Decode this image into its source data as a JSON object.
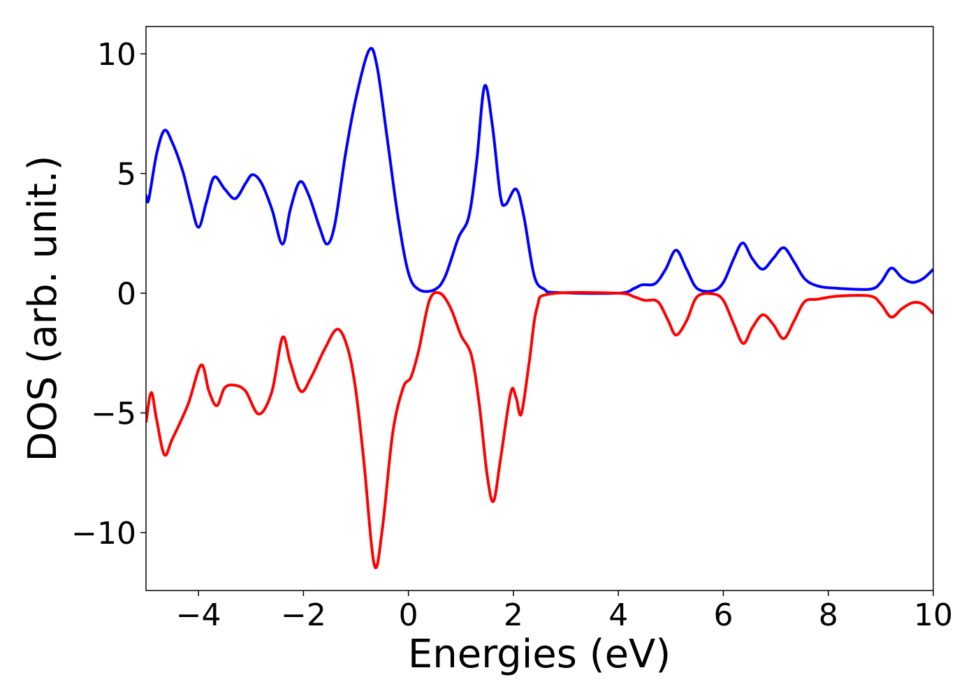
{
  "chart_data": {
    "type": "line",
    "xlabel": "Energies (eV)",
    "ylabel": "DOS (arb. unit.)",
    "xlim": [
      -5,
      10
    ],
    "ylim": [
      -12.42,
      11.14
    ],
    "xticks": [
      {
        "value": -4,
        "label": "−4"
      },
      {
        "value": -2,
        "label": "−2"
      },
      0,
      2,
      4,
      6,
      8,
      10
    ],
    "yticks": [
      {
        "value": -10,
        "label": "−10"
      },
      {
        "value": -5,
        "label": "−5"
      },
      0,
      5,
      10
    ],
    "series": [
      {
        "color": "#0000ff",
        "x": [
          -5,
          -4.95,
          -4.8,
          -4.65,
          -4.5,
          -4.3,
          -4.15,
          -4.0,
          -3.85,
          -3.7,
          -3.5,
          -3.3,
          -3.1,
          -2.97,
          -2.8,
          -2.6,
          -2.4,
          -2.25,
          -2.07,
          -1.9,
          -1.7,
          -1.55,
          -1.4,
          -1.2,
          -1.0,
          -0.75,
          -0.6,
          -0.4,
          -0.2,
          0,
          0.2,
          0.5,
          0.7,
          0.95,
          1.15,
          1.3,
          1.45,
          1.6,
          1.75,
          1.85,
          2.05,
          2.2,
          2.4,
          2.6,
          2.8,
          4.0,
          4.3,
          4.45,
          4.7,
          4.9,
          5.1,
          5.3,
          5.5,
          5.8,
          6.0,
          6.2,
          6.37,
          6.55,
          6.75,
          6.95,
          7.15,
          7.35,
          7.55,
          7.8,
          8.2,
          8.8,
          9.0,
          9.2,
          9.4,
          9.6,
          9.8,
          10
        ],
        "values": [
          4.1,
          3.9,
          5.8,
          6.8,
          6.3,
          5.1,
          3.8,
          2.75,
          3.8,
          4.85,
          4.35,
          3.95,
          4.6,
          4.95,
          4.6,
          3.5,
          2.05,
          3.5,
          4.65,
          4.1,
          2.8,
          2.05,
          2.9,
          5.8,
          8.15,
          10.15,
          9.5,
          6.4,
          3.2,
          0.85,
          0.15,
          0.15,
          0.7,
          2.3,
          3.2,
          5.5,
          8.65,
          7.0,
          4.1,
          3.7,
          4.35,
          3.2,
          0.7,
          0.15,
          0.03,
          0,
          0.2,
          0.35,
          0.4,
          1.0,
          1.8,
          1.0,
          0.2,
          0.1,
          0.45,
          1.45,
          2.1,
          1.45,
          1.0,
          1.45,
          1.9,
          1.3,
          0.6,
          0.3,
          0.2,
          0.17,
          0.45,
          1.05,
          0.65,
          0.45,
          0.6,
          1.0
        ]
      },
      {
        "color": "#ff0000",
        "x": [
          -5,
          -4.9,
          -4.8,
          -4.65,
          -4.5,
          -4.2,
          -3.95,
          -3.8,
          -3.65,
          -3.5,
          -3.3,
          -3.1,
          -2.85,
          -2.6,
          -2.4,
          -2.25,
          -2.05,
          -1.85,
          -1.6,
          -1.35,
          -1.15,
          -1.0,
          -0.85,
          -0.65,
          -0.5,
          -0.3,
          -0.1,
          0.05,
          0.2,
          0.4,
          0.6,
          0.8,
          1.0,
          1.2,
          1.35,
          1.5,
          1.62,
          1.75,
          1.95,
          2.05,
          2.15,
          2.3,
          2.45,
          2.7,
          4.0,
          4.3,
          4.5,
          4.75,
          4.95,
          5.1,
          5.3,
          5.5,
          5.8,
          6.0,
          6.2,
          6.38,
          6.55,
          6.75,
          6.95,
          7.15,
          7.35,
          7.55,
          7.8,
          8.2,
          8.8,
          9.0,
          9.2,
          9.4,
          9.6,
          9.8,
          10
        ],
        "values": [
          -5.4,
          -4.15,
          -5.25,
          -6.75,
          -6.1,
          -4.65,
          -3.0,
          -4.1,
          -4.7,
          -3.95,
          -3.85,
          -4.1,
          -5.05,
          -4.1,
          -1.85,
          -2.9,
          -4.1,
          -3.5,
          -2.35,
          -1.5,
          -2.35,
          -4.1,
          -7.0,
          -11.35,
          -9.9,
          -5.85,
          -3.95,
          -3.5,
          -2.35,
          -0.3,
          0,
          -0.6,
          -1.75,
          -2.6,
          -4.65,
          -7.6,
          -8.7,
          -7.0,
          -4.15,
          -4.35,
          -5.05,
          -2.9,
          -0.6,
          -0.03,
          0,
          -0.15,
          -0.3,
          -0.35,
          -1.15,
          -1.75,
          -1.15,
          -0.15,
          -0.03,
          -0.3,
          -1.3,
          -2.1,
          -1.45,
          -0.9,
          -1.3,
          -1.9,
          -1.15,
          -0.35,
          -0.25,
          -0.12,
          -0.12,
          -0.45,
          -1.0,
          -0.65,
          -0.4,
          -0.45,
          -0.85
        ]
      }
    ]
  }
}
